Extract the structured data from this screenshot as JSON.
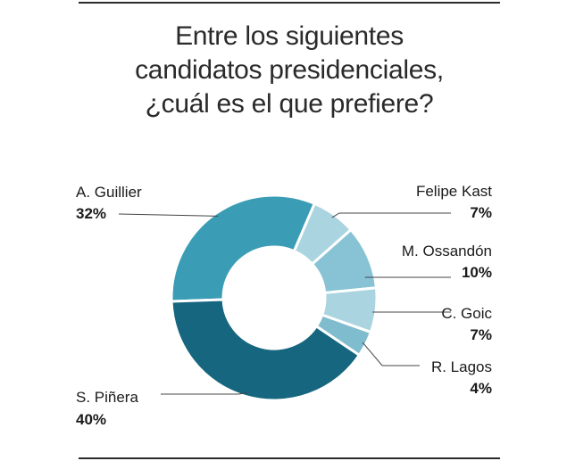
{
  "title_lines": [
    "Entre los siguientes",
    "candidatos presidenciales,",
    "¿cuál es el que prefiere?"
  ],
  "chart_data": {
    "type": "pie",
    "donut": true,
    "title": "Entre los siguientes candidatos presidenciales, ¿cuál es el que prefiere?",
    "categories": [
      "A. Guillier",
      "Felipe Kast",
      "M. Ossandón",
      "C. Goic",
      "R. Lagos",
      "S. Piñera"
    ],
    "values": [
      32,
      7,
      10,
      7,
      4,
      40
    ],
    "value_labels": [
      "32%",
      "7%",
      "10%",
      "7%",
      "4%",
      "40%"
    ],
    "colors": [
      "#3a9db5",
      "#a9d4e0",
      "#88c3d5",
      "#a9d4e0",
      "#7fbccd",
      "#16667f"
    ]
  }
}
